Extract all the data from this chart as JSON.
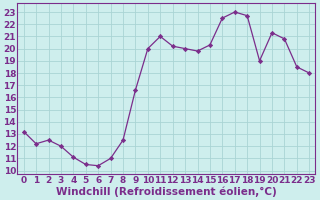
{
  "x": [
    0,
    1,
    2,
    3,
    4,
    5,
    6,
    7,
    8,
    9,
    10,
    11,
    12,
    13,
    14,
    15,
    16,
    17,
    18,
    19,
    20,
    21,
    22,
    23
  ],
  "y": [
    13.2,
    12.2,
    12.5,
    12.0,
    11.1,
    10.5,
    10.4,
    11.0,
    12.5,
    16.6,
    20.0,
    21.0,
    20.2,
    20.0,
    19.8,
    20.3,
    22.5,
    23.0,
    22.7,
    19.0,
    21.3,
    20.8,
    18.5,
    18.0
  ],
  "line_color": "#7B2D8B",
  "marker_color": "#7B2D8B",
  "bg_color": "#ceeeed",
  "grid_color": "#aad4d4",
  "xlabel": "Windchill (Refroidissement éolien,°C)",
  "ylabel_ticks": [
    10,
    11,
    12,
    13,
    14,
    15,
    16,
    17,
    18,
    19,
    20,
    21,
    22,
    23
  ],
  "ylim": [
    9.7,
    23.7
  ],
  "xlim": [
    -0.5,
    23.5
  ],
  "xticks": [
    0,
    1,
    2,
    3,
    4,
    5,
    6,
    7,
    8,
    9,
    10,
    11,
    12,
    13,
    14,
    15,
    16,
    17,
    18,
    19,
    20,
    21,
    22,
    23
  ],
  "tick_font_size": 6.5,
  "xlabel_font_size": 7.5
}
